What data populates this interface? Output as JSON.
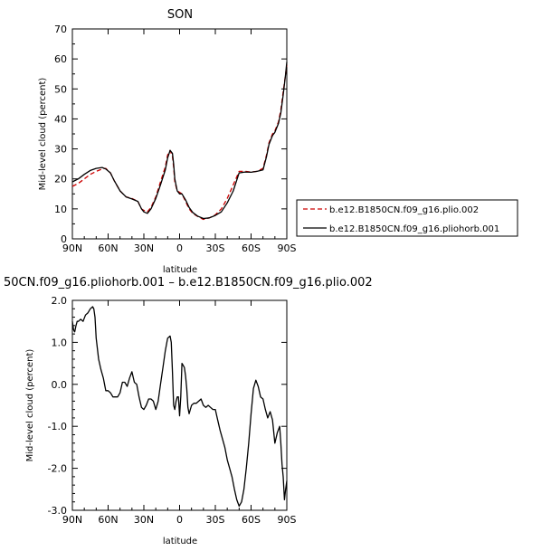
{
  "chart_data": [
    {
      "type": "line",
      "title": "SON",
      "xlabel": "latitude",
      "ylabel": "Mid-level cloud (percent)",
      "xlim": [
        90,
        -90
      ],
      "ylim": [
        0,
        70
      ],
      "x_tick_labels": [
        "90N",
        "60N",
        "30N",
        "0",
        "30S",
        "60S",
        "90S"
      ],
      "y_tick_labels": [
        "0",
        "10",
        "20",
        "30",
        "40",
        "50",
        "60",
        "70"
      ],
      "legend_position": "right",
      "series": [
        {
          "name": "b.e12.B1850CN.f09_g16.plio.002",
          "color": "#cc0000",
          "dash": "dashed",
          "x": [
            90,
            85,
            80,
            75,
            70,
            65,
            62,
            58,
            55,
            50,
            45,
            40,
            35,
            32,
            30,
            27,
            24,
            20,
            16,
            12,
            10,
            8,
            6,
            5,
            4,
            2,
            0,
            -2,
            -5,
            -8,
            -11,
            -15,
            -20,
            -25,
            -30,
            -35,
            -40,
            -45,
            -50,
            -55,
            -60,
            -65,
            -70,
            -73,
            -75,
            -78,
            -80,
            -83,
            -85,
            -87,
            -89,
            -90
          ],
          "y": [
            17.5,
            18.5,
            20,
            21.5,
            22.5,
            23.3,
            23.5,
            22,
            19.5,
            16,
            14,
            13.5,
            12.5,
            10,
            9.5,
            9,
            10.5,
            14,
            19,
            24,
            28,
            29.5,
            27.5,
            24,
            19,
            16,
            15.5,
            15,
            12.5,
            10,
            8.5,
            7.5,
            6.5,
            7,
            8,
            10,
            13.5,
            18,
            22.5,
            22.5,
            22.3,
            22.5,
            23.5,
            28,
            32,
            35,
            36,
            39,
            43,
            49,
            55,
            58
          ]
        },
        {
          "name": "b.e12.B1850CN.f09_g16.pliohorb.001",
          "color": "#000000",
          "dash": "solid",
          "x": [
            90,
            85,
            80,
            75,
            70,
            65,
            62,
            58,
            55,
            50,
            45,
            40,
            35,
            32,
            30,
            27,
            24,
            20,
            16,
            12,
            10,
            8,
            6,
            5,
            4,
            2,
            0,
            -2,
            -5,
            -8,
            -11,
            -15,
            -20,
            -25,
            -30,
            -35,
            -40,
            -45,
            -50,
            -55,
            -60,
            -65,
            -70,
            -73,
            -75,
            -78,
            -80,
            -83,
            -85,
            -87,
            -89,
            -90
          ],
          "y": [
            19,
            20,
            21.5,
            22.8,
            23.5,
            23.8,
            23.3,
            22,
            19.5,
            16,
            14,
            13.3,
            12.5,
            10,
            9,
            8.5,
            10,
            13.5,
            18,
            23,
            27,
            29.5,
            28.5,
            25,
            20,
            16,
            15,
            15,
            13,
            10.5,
            8.8,
            7.6,
            6.8,
            7,
            7.8,
            9,
            12,
            16,
            22,
            22.3,
            22.2,
            22.5,
            23,
            27.5,
            31.5,
            34.5,
            35.5,
            38.5,
            42,
            48,
            55,
            59
          ]
        }
      ]
    },
    {
      "type": "line",
      "title": "50CN.f09_g16.pliohorb.001 – b.e12.B1850CN.f09_g16.plio.002",
      "xlabel": "latitude",
      "ylabel": "Mid-level cloud (percent)",
      "xlim": [
        90,
        -90
      ],
      "ylim": [
        -3.0,
        2.0
      ],
      "x_tick_labels": [
        "90N",
        "60N",
        "30N",
        "0",
        "30S",
        "60S",
        "90S"
      ],
      "y_tick_labels": [
        "-3.0",
        "-2.0",
        "-1.0",
        "0.0",
        "1.0",
        "2.0"
      ],
      "series": [
        {
          "name": "",
          "color": "#000000",
          "dash": "solid",
          "x": [
            90,
            89,
            88,
            87,
            86,
            85,
            83,
            81,
            79,
            77,
            75,
            73,
            72,
            71,
            70,
            68,
            66,
            64,
            62,
            60,
            58,
            56,
            54,
            52,
            50,
            48,
            46,
            44,
            42,
            40,
            38,
            36,
            34,
            32,
            30,
            28,
            26,
            24,
            22,
            20,
            18,
            16,
            14,
            12,
            10,
            8,
            7,
            6,
            5,
            4,
            3,
            2,
            1,
            0,
            -1,
            -2,
            -3,
            -4,
            -5,
            -6,
            -7,
            -8,
            -10,
            -12,
            -14,
            -16,
            -18,
            -20,
            -22,
            -24,
            -26,
            -28,
            -30,
            -32,
            -34,
            -36,
            -38,
            -40,
            -42,
            -44,
            -46,
            -48,
            -50,
            -52,
            -54,
            -56,
            -58,
            -60,
            -62,
            -64,
            -66,
            -68,
            -70,
            -72,
            -74,
            -76,
            -78,
            -80,
            -82,
            -84,
            -85,
            -86,
            -87,
            -88,
            -89,
            -90
          ],
          "y": [
            1.5,
            1.3,
            1.25,
            1.4,
            1.5,
            1.5,
            1.55,
            1.5,
            1.65,
            1.7,
            1.8,
            1.85,
            1.8,
            1.6,
            1.1,
            0.6,
            0.35,
            0.15,
            -0.15,
            -0.15,
            -0.2,
            -0.3,
            -0.3,
            -0.3,
            -0.2,
            0.05,
            0.05,
            -0.05,
            0.15,
            0.3,
            0.05,
            0.0,
            -0.3,
            -0.55,
            -0.6,
            -0.5,
            -0.35,
            -0.35,
            -0.4,
            -0.6,
            -0.4,
            0.0,
            0.4,
            0.8,
            1.1,
            1.15,
            1.0,
            0.3,
            -0.5,
            -0.6,
            -0.4,
            -0.3,
            -0.3,
            -0.75,
            -0.3,
            0.5,
            0.45,
            0.4,
            0.2,
            -0.1,
            -0.55,
            -0.7,
            -0.5,
            -0.45,
            -0.45,
            -0.4,
            -0.35,
            -0.5,
            -0.55,
            -0.5,
            -0.55,
            -0.6,
            -0.6,
            -0.85,
            -1.1,
            -1.3,
            -1.5,
            -1.8,
            -2.0,
            -2.2,
            -2.5,
            -2.75,
            -2.9,
            -2.8,
            -2.5,
            -2.0,
            -1.4,
            -0.7,
            -0.1,
            0.1,
            -0.05,
            -0.3,
            -0.35,
            -0.6,
            -0.8,
            -0.65,
            -0.85,
            -1.4,
            -1.15,
            -1.0,
            -1.4,
            -1.9,
            -2.2,
            -2.75,
            -2.5,
            -2.3
          ]
        }
      ]
    }
  ]
}
